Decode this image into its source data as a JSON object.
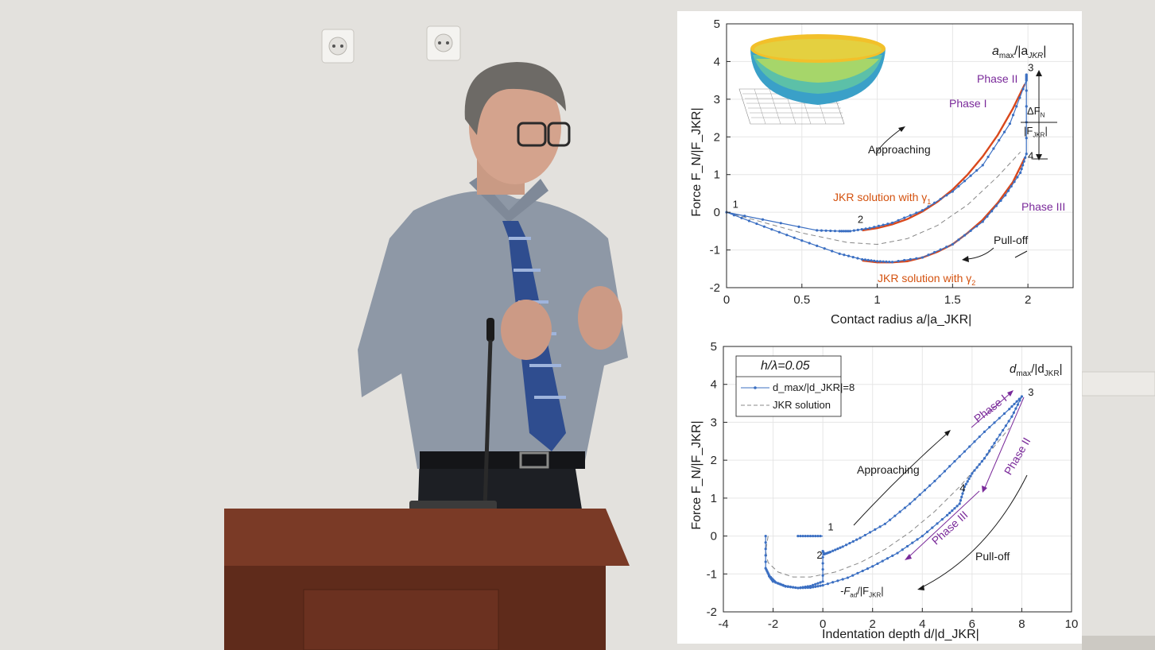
{
  "colors": {
    "wall": "#e3e1dd",
    "panel": "#ffffff",
    "data_series": "#3b6fc2",
    "jkr_fit": "#d9481c",
    "jkr_dashed": "#888888",
    "phase_label": "#7a2a9a",
    "annotation_orange": "#d4520f",
    "podium": "#7a3a26",
    "shirt": "#8e98a6",
    "tie": "#2f4d8f"
  },
  "scene": {
    "icons": [
      "wall-socket-icon",
      "wall-socket-icon",
      "microphone-icon"
    ]
  },
  "chart_data": [
    {
      "type": "line",
      "title": "",
      "xlabel": "Contact radius a/|a_JKR|",
      "ylabel": "Force F_N/|F_JKR|",
      "xlim": [
        0,
        2.3
      ],
      "ylim": [
        -2,
        5
      ],
      "xticks": [
        0,
        0.5,
        1,
        1.5,
        2
      ],
      "xtick_labels": [
        "0",
        "0.5",
        "1",
        "1.5",
        "2"
      ],
      "yticks": [
        -2,
        -1,
        0,
        1,
        2,
        3,
        4,
        5
      ],
      "ytick_labels": [
        "-2",
        "-1",
        "0",
        "1",
        "2",
        "3",
        "4",
        "5"
      ],
      "grid": true,
      "legend": "none",
      "series": [
        {
          "style": "markers-line",
          "x": [
            0,
            0.6,
            0.75,
            0.82,
            0.95,
            1.1,
            1.3,
            1.5,
            1.7,
            1.88,
            1.99,
            1.99,
            1.99,
            1.95,
            1.85,
            1.7,
            1.5,
            1.3,
            1.1,
            1.0,
            0.9,
            0.75,
            0.5,
            0.25,
            0
          ],
          "y": [
            0,
            -0.48,
            -0.5,
            -0.5,
            -0.42,
            -0.28,
            0.05,
            0.55,
            1.25,
            2.35,
            3.5,
            3.65,
            1.55,
            1.05,
            0.45,
            -0.25,
            -0.85,
            -1.2,
            -1.32,
            -1.3,
            -1.25,
            -1.1,
            -0.75,
            -0.38,
            0
          ]
        },
        {
          "style": "solid",
          "x": [
            0.9,
            1.0,
            1.1,
            1.2,
            1.3,
            1.4,
            1.5,
            1.6,
            1.7,
            1.8,
            1.9,
            1.98
          ],
          "y": [
            -0.48,
            -0.42,
            -0.32,
            -0.18,
            0.02,
            0.28,
            0.6,
            1.0,
            1.48,
            2.05,
            2.75,
            3.4
          ]
        },
        {
          "style": "solid",
          "x": [
            0.9,
            1.0,
            1.1,
            1.2,
            1.3,
            1.4,
            1.5,
            1.6,
            1.7,
            1.8,
            1.9,
            1.98
          ],
          "y": [
            -1.28,
            -1.33,
            -1.33,
            -1.3,
            -1.2,
            -1.05,
            -0.85,
            -0.55,
            -0.2,
            0.25,
            0.8,
            1.45
          ]
        },
        {
          "style": "dashed",
          "x": [
            0,
            0.5,
            0.8,
            1.0,
            1.2,
            1.4,
            1.6,
            1.8,
            1.95
          ],
          "y": [
            0,
            -0.55,
            -0.8,
            -0.85,
            -0.7,
            -0.35,
            0.2,
            0.95,
            1.6
          ]
        }
      ],
      "point_labels": [
        {
          "text": "1",
          "x": 0.04,
          "y": 0.12
        },
        {
          "text": "2",
          "x": 0.87,
          "y": -0.28
        },
        {
          "text": "3",
          "x": 2.0,
          "y": 3.75
        },
        {
          "text": "4",
          "x": 2.0,
          "y": 1.4
        }
      ],
      "annotations": [
        {
          "text": "a",
          "sub": "max",
          "rest": "/|a",
          "sub2": "JKR",
          "end": "|"
        },
        {
          "text": "Phase II"
        },
        {
          "text": "Phase I"
        },
        {
          "text": "Approaching"
        },
        {
          "text": "JKR solution with γ",
          "sub": "1"
        },
        {
          "text": "Phase III"
        },
        {
          "text": "Pull-off"
        },
        {
          "text": "JKR solution with γ",
          "sub": "2"
        },
        {
          "text": "ΔF",
          "sub": "N"
        },
        {
          "text": "|F",
          "sub": "JKR",
          "end": "|"
        }
      ]
    },
    {
      "type": "line",
      "title": "",
      "xlabel": "Indentation depth d/|d_JKR|",
      "ylabel": "Force F_N/|F_JKR|",
      "xlim": [
        -4,
        10
      ],
      "ylim": [
        -2,
        5
      ],
      "xticks": [
        -4,
        -2,
        0,
        2,
        4,
        6,
        8,
        10
      ],
      "xtick_labels": [
        "-4",
        "-2",
        "0",
        "2",
        "4",
        "6",
        "8",
        "10"
      ],
      "yticks": [
        -2,
        -1,
        0,
        1,
        2,
        3,
        4,
        5
      ],
      "ytick_labels": [
        "-2",
        "-1",
        "0",
        "1",
        "2",
        "3",
        "4",
        "5"
      ],
      "grid": true,
      "legend": "top-left",
      "legend_title": "h/λ=0.05",
      "legend_entries": [
        {
          "label": "d_max/|d_JKR|=8",
          "style": "markers-line"
        },
        {
          "label": "JKR solution",
          "style": "dashed"
        }
      ],
      "series": [
        {
          "name": "d_max/|d_JKR|=8",
          "style": "markers-line",
          "x": [
            -2.3,
            -2.3,
            -2.15,
            -1.9,
            -1.5,
            -1.0,
            -0.5,
            0,
            0,
            0.05,
            0.3,
            0.8,
            1.5,
            2.5,
            3.5,
            4.5,
            5.5,
            6.5,
            7.5,
            8.0,
            7.6,
            7.0,
            6.5,
            6.0,
            5.7,
            5.5,
            5.0,
            4.0,
            3.0,
            2.0,
            1.0,
            0,
            -0.5,
            -1.0,
            -1.5,
            -2.0,
            -2.2
          ],
          "y": [
            0,
            -0.85,
            -1.05,
            -1.22,
            -1.33,
            -1.37,
            -1.32,
            -1.2,
            -0.4,
            -0.48,
            -0.42,
            -0.28,
            -0.05,
            0.32,
            0.85,
            1.45,
            2.1,
            2.75,
            3.35,
            3.68,
            3.15,
            2.55,
            2.05,
            1.65,
            1.3,
            0.85,
            0.55,
            0.0,
            -0.45,
            -0.8,
            -1.1,
            -1.3,
            -1.36,
            -1.37,
            -1.32,
            -1.2,
            -1.02
          ]
        },
        {
          "name": "flat-segment",
          "style": "markers-line",
          "x": [
            -1.0,
            -0.5,
            0
          ],
          "y": [
            0,
            0,
            0
          ]
        },
        {
          "name": "JKR solution",
          "style": "dashed",
          "x": [
            -2.2,
            -2.3,
            -2.2,
            -1.8,
            -1.2,
            -0.5,
            0.5,
            1.5,
            2.5,
            3.5,
            4.5,
            5.5,
            6.5,
            7.5
          ],
          "y": [
            0,
            -0.4,
            -0.7,
            -0.95,
            -1.08,
            -1.08,
            -0.95,
            -0.7,
            -0.35,
            0.1,
            0.65,
            1.3,
            2.05,
            2.85
          ]
        }
      ],
      "point_labels": [
        {
          "text": "1",
          "x": 0.2,
          "y": 0.15
        },
        {
          "text": "2",
          "x": -0.25,
          "y": -0.6
        },
        {
          "text": "3",
          "x": 8.25,
          "y": 3.7
        },
        {
          "text": "4",
          "x": 5.5,
          "y": 1.18
        }
      ],
      "annotations": [
        {
          "text": "d",
          "sub": "max",
          "rest": "/|d",
          "sub2": "JKR",
          "end": "|"
        },
        {
          "text": "Phase I"
        },
        {
          "text": "Phase II"
        },
        {
          "text": "Approaching"
        },
        {
          "text": "Phase III"
        },
        {
          "text": "Pull-off"
        },
        {
          "text": "-F",
          "sub": "ad",
          "rest": "/|F",
          "sub2": "JKR",
          "end": "|"
        }
      ]
    }
  ]
}
